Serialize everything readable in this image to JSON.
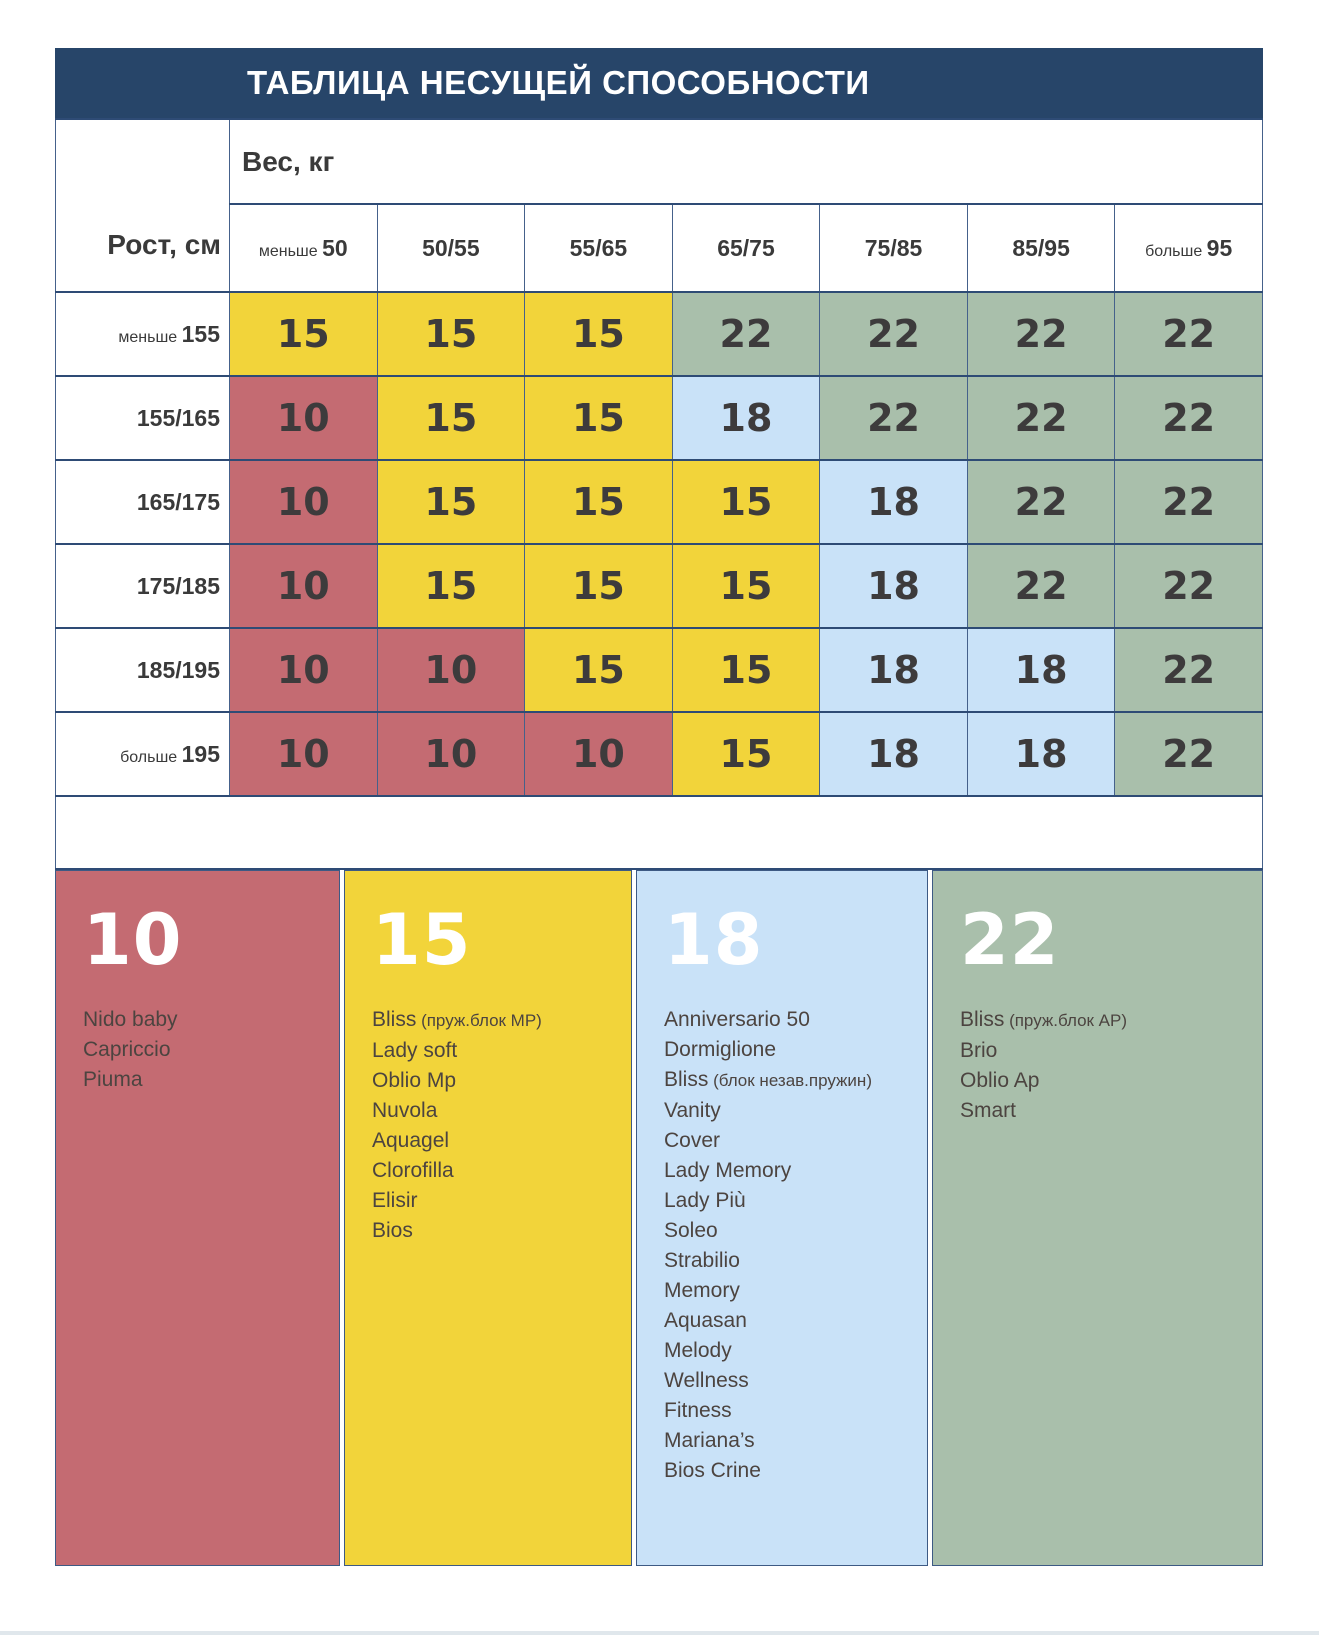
{
  "title": "ТАБЛИЦА НЕСУЩЕЙ СПОСОБНОСТИ",
  "table": {
    "weight_axis_label": "Вес, кг",
    "height_axis_label": "Рост, см",
    "weight_columns": [
      {
        "prefix": "меньше",
        "value": "50"
      },
      {
        "value": "50/55"
      },
      {
        "value": "55/65"
      },
      {
        "value": "65/75"
      },
      {
        "value": "75/85"
      },
      {
        "value": "85/95"
      },
      {
        "prefix": "больше",
        "value": "95"
      }
    ],
    "height_rows": [
      {
        "prefix": "меньше",
        "value": "155"
      },
      {
        "value": "155/165"
      },
      {
        "value": "165/175"
      },
      {
        "value": "175/185"
      },
      {
        "value": "185/195"
      },
      {
        "prefix": "больше",
        "value": "195"
      }
    ]
  },
  "chart_data": {
    "type": "heatmap",
    "title": "ТАБЛИЦА НЕСУЩЕЙ СПОСОБНОСТИ",
    "x_label": "Вес, кг",
    "y_label": "Рост, см",
    "x_categories": [
      "меньше 50",
      "50/55",
      "55/65",
      "65/75",
      "75/85",
      "85/95",
      "больше 95"
    ],
    "y_categories": [
      "меньше 155",
      "155/165",
      "165/175",
      "175/185",
      "185/195",
      "больше 195"
    ],
    "values": [
      [
        15,
        15,
        15,
        22,
        22,
        22,
        22
      ],
      [
        10,
        15,
        15,
        18,
        22,
        22,
        22
      ],
      [
        10,
        15,
        15,
        15,
        18,
        22,
        22
      ],
      [
        10,
        15,
        15,
        15,
        18,
        22,
        22
      ],
      [
        10,
        10,
        15,
        15,
        18,
        18,
        22
      ],
      [
        10,
        10,
        10,
        15,
        18,
        18,
        22
      ]
    ],
    "value_colors": {
      "10": "#c46b72",
      "15": "#f2d43a",
      "18": "#c9e2f8",
      "22": "#a9bfab"
    },
    "legend_position": "bottom",
    "grid": true
  },
  "tones_by_value": {
    "10": "red",
    "15": "yellow",
    "18": "blue",
    "22": "green"
  },
  "legend": [
    {
      "value": "10",
      "tone": "red",
      "items": [
        {
          "name": "Nido baby"
        },
        {
          "name": "Capriccio"
        },
        {
          "name": "Piuma"
        }
      ]
    },
    {
      "value": "15",
      "tone": "yellow",
      "items": [
        {
          "name": "Bliss",
          "note": "(пруж.блок MP)"
        },
        {
          "name": "Lady soft"
        },
        {
          "name": "Oblio Mp"
        },
        {
          "name": "Nuvola"
        },
        {
          "name": "Aquagel"
        },
        {
          "name": "Clorofilla"
        },
        {
          "name": "Elisir"
        },
        {
          "name": "Bios"
        }
      ]
    },
    {
      "value": "18",
      "tone": "blue",
      "items": [
        {
          "name": "Anniversario 50"
        },
        {
          "name": "Dormiglione"
        },
        {
          "name": "Bliss",
          "note": "(блок незав.пружин)"
        },
        {
          "name": "Vanity"
        },
        {
          "name": "Cover"
        },
        {
          "name": "Lady Memory"
        },
        {
          "name": "Lady Più"
        },
        {
          "name": "Soleo"
        },
        {
          "name": "Strabilio"
        },
        {
          "name": "Memory"
        },
        {
          "name": "Aquasan"
        },
        {
          "name": "Melody"
        },
        {
          "name": "Wellness"
        },
        {
          "name": "Fitness"
        },
        {
          "name": "Mariana’s"
        },
        {
          "name": "Bios Crine"
        }
      ]
    },
    {
      "value": "22",
      "tone": "green",
      "items": [
        {
          "name": "Bliss",
          "note": "(пруж.блок AP)"
        },
        {
          "name": "Brio"
        },
        {
          "name": "Oblio Ap"
        },
        {
          "name": "Smart"
        }
      ]
    }
  ],
  "colors": {
    "navy": "#274569",
    "red": "#c46b72",
    "yellow": "#f2d43a",
    "blue": "#c9e2f8",
    "green": "#a9bfab",
    "cell_text": "#3d3b3c"
  }
}
